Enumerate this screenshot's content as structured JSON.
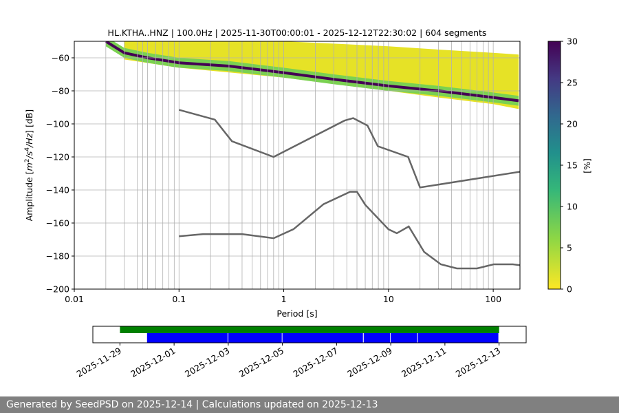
{
  "figure": {
    "footer": "Generated by SeedPSD on 2025-12-14 | Calculations updated on 2025-12-13"
  },
  "chart_data": [
    {
      "type": "heatmap",
      "title": "HL.KTHA..HNZ | 100.0Hz | 2025-11-30T00:00:01 - 2025-12-12T22:30:02 | 604 segments",
      "xlabel": "Period [s]",
      "ylabel": "Amplitude [m²/s⁴/Hz] [dB]",
      "ylabel_parts": {
        "pre": "Amplitude [",
        "m": "m",
        "two": "2",
        "slash": "/",
        "s": "s",
        "four": "4",
        "hz": "/Hz",
        "post": "] [dB]"
      },
      "x_scale": "log",
      "xlim": [
        0.01,
        180
      ],
      "ylim": [
        -200,
        -50
      ],
      "xticks": [
        {
          "value": 0.01,
          "label": "0.01"
        },
        {
          "value": 0.1,
          "label": "0.1"
        },
        {
          "value": 1,
          "label": "1"
        },
        {
          "value": 10,
          "label": "10"
        },
        {
          "value": 100,
          "label": "100"
        }
      ],
      "yticks": [
        {
          "value": -60,
          "label": "−60"
        },
        {
          "value": -80,
          "label": "−80"
        },
        {
          "value": -100,
          "label": "−100"
        },
        {
          "value": -120,
          "label": "−120"
        },
        {
          "value": -140,
          "label": "−140"
        },
        {
          "value": -160,
          "label": "−160"
        },
        {
          "value": -180,
          "label": "−180"
        },
        {
          "value": -200,
          "label": "−200"
        }
      ],
      "grid": true,
      "vertical_gridlines_at_periods": [
        0.02,
        0.03,
        0.04,
        0.045,
        0.05,
        0.06,
        0.07,
        0.08,
        0.09,
        0.2,
        0.3,
        0.4,
        0.5,
        0.6,
        0.7,
        0.8,
        0.9,
        2,
        3,
        4,
        5,
        6,
        7,
        8,
        9,
        20,
        30,
        40,
        50,
        60,
        70,
        80,
        90
      ],
      "psd_mode_line": [
        [
          0.02,
          -50
        ],
        [
          0.03,
          -57
        ],
        [
          0.05,
          -60
        ],
        [
          0.1,
          -63
        ],
        [
          0.3,
          -65
        ],
        [
          1,
          -69
        ],
        [
          3,
          -73
        ],
        [
          10,
          -77
        ],
        [
          30,
          -80
        ],
        [
          100,
          -84
        ],
        [
          175,
          -86
        ]
      ],
      "psd_band_upper": [
        [
          0.03,
          -49
        ],
        [
          0.1,
          -49
        ],
        [
          1,
          -50
        ],
        [
          10,
          -53
        ],
        [
          30,
          -55
        ],
        [
          100,
          -57
        ],
        [
          175,
          -58
        ]
      ],
      "psd_band_lower": [
        [
          0.03,
          -61
        ],
        [
          0.1,
          -66
        ],
        [
          1,
          -72
        ],
        [
          10,
          -80
        ],
        [
          30,
          -84
        ],
        [
          100,
          -88
        ],
        [
          175,
          -91
        ]
      ],
      "noise_models": [
        {
          "name": "high",
          "color": "#666666",
          "points": [
            [
              0.1,
              -91.5
            ],
            [
              0.22,
              -97.4
            ],
            [
              0.32,
              -110.5
            ],
            [
              0.8,
              -120
            ],
            [
              3.8,
              -98
            ],
            [
              4.6,
              -96.5
            ],
            [
              6.3,
              -101
            ],
            [
              7.9,
              -113.5
            ],
            [
              15.4,
              -120
            ],
            [
              20,
              -138.5
            ],
            [
              354.8,
              -126
            ]
          ]
        },
        {
          "name": "low",
          "color": "#666666",
          "points": [
            [
              0.1,
              -168
            ],
            [
              0.17,
              -166.7
            ],
            [
              0.4,
              -166.7
            ],
            [
              0.8,
              -169.2
            ],
            [
              1.24,
              -163.7
            ],
            [
              2.4,
              -148.6
            ],
            [
              4.3,
              -141.1
            ],
            [
              5,
              -141.1
            ],
            [
              6,
              -149
            ],
            [
              10,
              -163.8
            ],
            [
              12,
              -166.2
            ],
            [
              15.6,
              -162.1
            ],
            [
              21.9,
              -177.5
            ],
            [
              31.6,
              -185
            ],
            [
              45,
              -187.5
            ],
            [
              70,
              -187.5
            ],
            [
              101,
              -185
            ],
            [
              154,
              -185
            ],
            [
              328,
              -187.5
            ]
          ]
        }
      ],
      "colorbar": {
        "label": "[%]",
        "min": 0,
        "max": 30,
        "ticks": [
          0,
          5,
          10,
          15,
          20,
          25,
          30
        ],
        "colormap": "viridis_r"
      }
    },
    {
      "type": "timeline",
      "xlim": [
        "2025-11-28T00:00",
        "2025-12-14T00:00"
      ],
      "xticks": [
        "2025-11-29",
        "2025-12-01",
        "2025-12-03",
        "2025-12-05",
        "2025-12-07",
        "2025-12-09",
        "2025-12-11",
        "2025-12-13"
      ],
      "series": [
        {
          "color": "#008000",
          "bars": [
            [
              "2025-11-29T00:00",
              "2025-12-13T00:00"
            ]
          ]
        },
        {
          "color": "#0000ff",
          "bars": [
            [
              "2025-11-30T00:00",
              "2025-12-03T00:00"
            ],
            [
              "2025-12-03T00:00",
              "2025-12-05T00:00"
            ],
            [
              "2025-12-05T00:00",
              "2025-12-08T00:00"
            ],
            [
              "2025-12-08T00:00",
              "2025-12-09T00:00"
            ],
            [
              "2025-12-09T00:00",
              "2025-12-10T00:00"
            ],
            [
              "2025-12-10T00:00",
              "2025-12-13T00:00"
            ]
          ]
        }
      ]
    }
  ]
}
